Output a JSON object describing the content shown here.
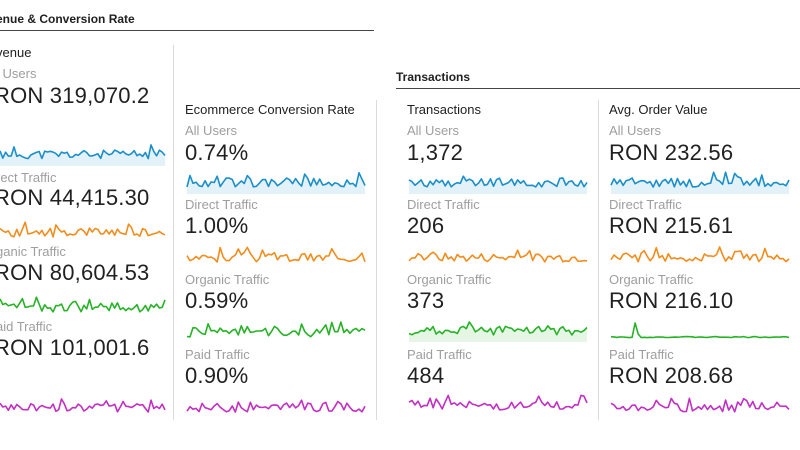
{
  "sections": {
    "revenue_conversion": {
      "title": "enue & Conversion Rate"
    },
    "transactions": {
      "title": "Transactions"
    }
  },
  "cards": [
    {
      "key": "revenue",
      "title": "venue",
      "segments": [
        {
          "label": "l Users",
          "value": "RON 319,070.2",
          "color": "#1a8fc9",
          "spark_seed": 11,
          "fill": true
        },
        {
          "label": "rect Traffic",
          "value": "RON 44,415.30",
          "color": "#f28c1b",
          "spark_seed": 23,
          "fill": false
        },
        {
          "label": "ganic Traffic",
          "value": "RON 80,604.53",
          "color": "#27b327",
          "spark_seed": 37,
          "fill": false
        },
        {
          "label": "aid Traffic",
          "value": "RON 101,001.6",
          "color": "#c32ec3",
          "spark_seed": 41,
          "fill": false
        }
      ]
    },
    {
      "key": "conversion",
      "title": "Ecommerce Conversion Rate",
      "segments": [
        {
          "label": "All Users",
          "value": "0.74%",
          "color": "#1a8fc9",
          "spark_seed": 53,
          "fill": true
        },
        {
          "label": "Direct Traffic",
          "value": "1.00%",
          "color": "#f28c1b",
          "spark_seed": 67,
          "fill": false
        },
        {
          "label": "Organic Traffic",
          "value": "0.59%",
          "color": "#27b327",
          "spark_seed": 71,
          "fill": false
        },
        {
          "label": "Paid Traffic",
          "value": "0.90%",
          "color": "#c32ec3",
          "spark_seed": 83,
          "fill": false
        }
      ]
    },
    {
      "key": "transactions",
      "title": "Transactions",
      "segments": [
        {
          "label": "All Users",
          "value": "1,372",
          "color": "#1a8fc9",
          "spark_seed": 97,
          "fill": true
        },
        {
          "label": "Direct Traffic",
          "value": "206",
          "color": "#f28c1b",
          "spark_seed": 101,
          "fill": false
        },
        {
          "label": "Organic Traffic",
          "value": "373",
          "color": "#27b327",
          "spark_seed": 113,
          "fill": true
        },
        {
          "label": "Paid Traffic",
          "value": "484",
          "color": "#c32ec3",
          "spark_seed": 127,
          "fill": false
        }
      ]
    },
    {
      "key": "aov",
      "title": "Avg. Order Value",
      "segments": [
        {
          "label": "All Users",
          "value": "RON 232.56",
          "color": "#1a8fc9",
          "spark_seed": 131,
          "fill": true
        },
        {
          "label": "Direct Traffic",
          "value": "RON 215.61",
          "color": "#f28c1b",
          "spark_seed": 149,
          "fill": false
        },
        {
          "label": "Organic Traffic",
          "value": "RON 216.10",
          "color": "#27b327",
          "spark_seed": 151,
          "fill": false,
          "flat": true
        },
        {
          "label": "Paid Traffic",
          "value": "RON 208.68",
          "color": "#c32ec3",
          "spark_seed": 163,
          "fill": false
        }
      ]
    }
  ]
}
